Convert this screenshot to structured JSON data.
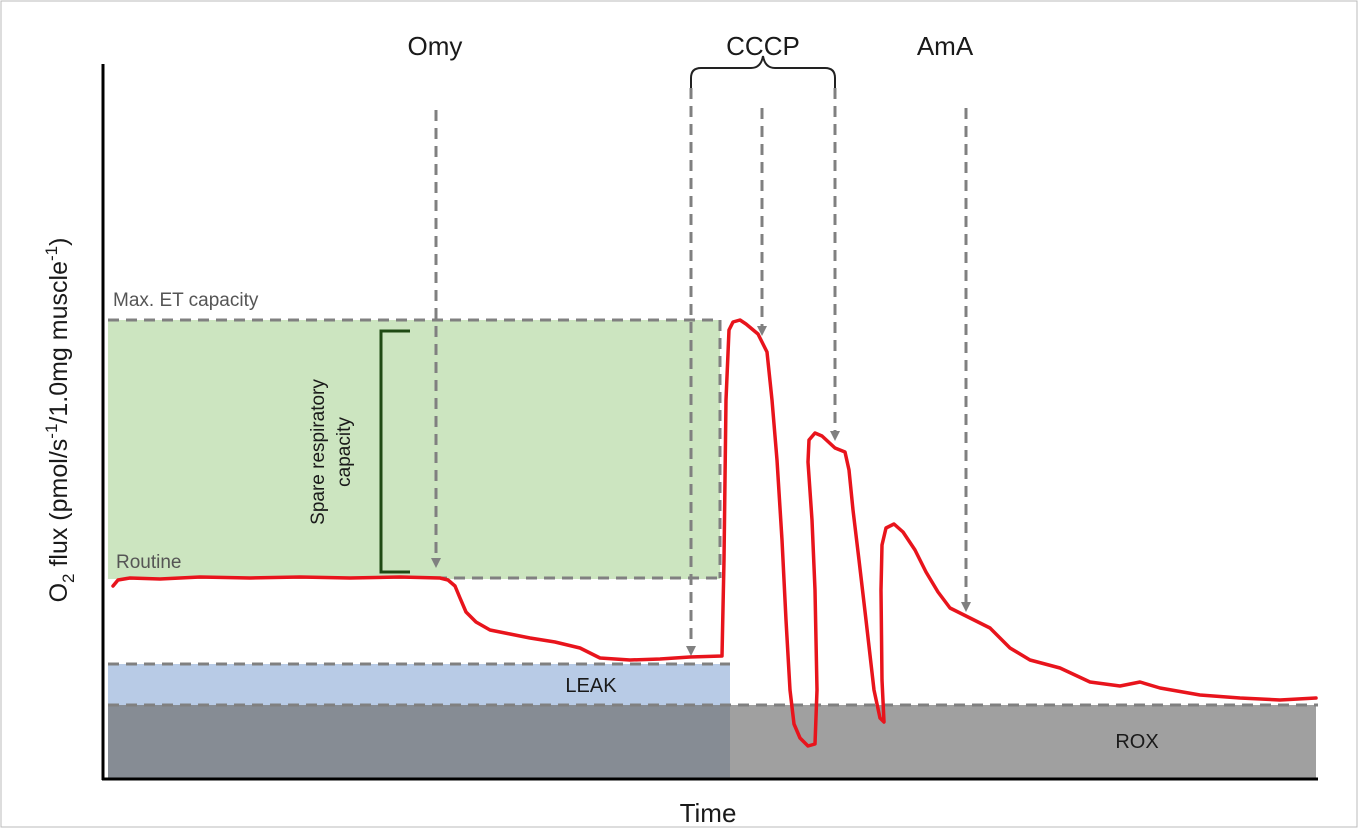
{
  "figure": {
    "y_axis_label": "O2 flux (pmol/s-1/1.0mg muscle-1)",
    "y_axis_label_parts": {
      "o": "O",
      "sub2": "2",
      "mid": " flux (pmol/s",
      "sup1": "-1",
      "mid2": "/1.0mg muscle",
      "sup2": "-1",
      "end": ")"
    },
    "x_axis_label": "Time",
    "injections": {
      "omy": "Omy",
      "cccp": "CCCP",
      "ama": "AmA"
    },
    "regions": {
      "max_et_capacity": "Max. ET capacity",
      "routine": "Routine",
      "spare_line1": "Spare respiratory",
      "spare_line2": "capacity",
      "leak": "LEAK",
      "rox": "ROX"
    },
    "colors": {
      "trace": "#e8141c",
      "spare_fill": "#cce5c0",
      "leak_fill": "#b8cbe6",
      "rox_left_fill": "#868c94",
      "rox_right_fill": "#a0a0a0",
      "dashed": "#808080",
      "bracket": "#1f4a14"
    }
  }
}
